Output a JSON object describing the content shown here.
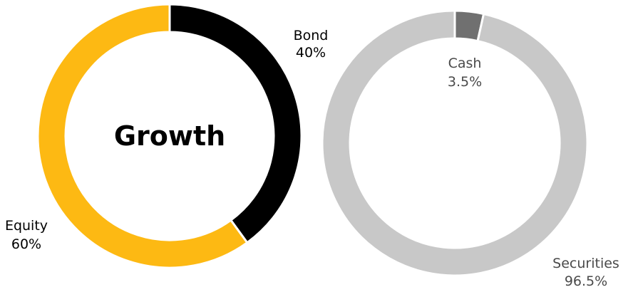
{
  "chart_data": [
    {
      "type": "pie",
      "variant": "donut",
      "title": "Growth",
      "categories": [
        "Bond",
        "Equity"
      ],
      "values": [
        40,
        60
      ],
      "value_labels": [
        "40%",
        "60%"
      ],
      "colors": [
        "#000000",
        "#FDB913"
      ]
    },
    {
      "type": "pie",
      "variant": "donut",
      "title": "",
      "categories": [
        "Cash",
        "Securities"
      ],
      "values": [
        3.5,
        96.5
      ],
      "value_labels": [
        "3.5%",
        "96.5%"
      ],
      "colors": [
        "#707070",
        "#C8C8C8"
      ],
      "label_color": "#4a4a4a"
    }
  ]
}
